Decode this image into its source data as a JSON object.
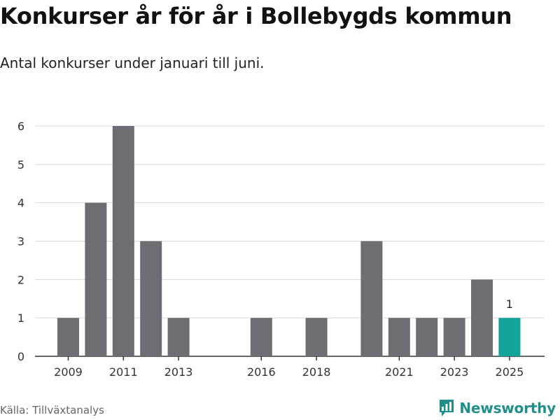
{
  "header": {
    "title": "Konkurser år för år i Bollebygds kommun",
    "subtitle": "Antal konkurser under januari till juni."
  },
  "footer": {
    "source": "Källa: Tillväxtanalys",
    "brand": "Newsworthy",
    "brand_icon": "bar-chart-speech-bubble-icon"
  },
  "colors": {
    "bar": "#6e6d73",
    "highlight": "#13a39a",
    "grid": "#d9d9d9",
    "axis": "#333333",
    "brand": "#1f8f8a"
  },
  "chart_data": {
    "type": "bar",
    "x": [
      2009,
      2010,
      2011,
      2012,
      2013,
      2014,
      2015,
      2016,
      2017,
      2018,
      2019,
      2020,
      2021,
      2022,
      2023,
      2024,
      2025
    ],
    "values": [
      1,
      4,
      6,
      3,
      1,
      0,
      0,
      1,
      0,
      1,
      0,
      3,
      1,
      1,
      1,
      2,
      1
    ],
    "x_tick_labels": [
      "2009",
      "2011",
      "2013",
      "2016",
      "2018",
      "2021",
      "2023",
      "2025"
    ],
    "ylim": [
      0,
      6
    ],
    "y_ticks": [
      0,
      1,
      2,
      3,
      4,
      5,
      6
    ],
    "highlight_x": 2025,
    "data_labels": [
      {
        "x": 2025,
        "label": "1"
      }
    ],
    "grid": true,
    "xlabel": "",
    "ylabel": ""
  }
}
